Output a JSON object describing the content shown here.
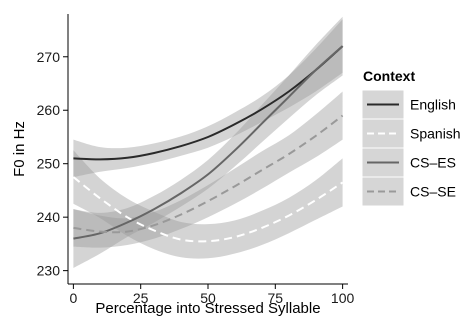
{
  "chart_data": {
    "type": "line",
    "xlabel": "Percentage into Stressed Syllable",
    "ylabel": "F0 in Hz",
    "xlim": [
      -2,
      102
    ],
    "ylim": [
      227.5,
      278
    ],
    "x_ticks": [
      0,
      25,
      50,
      75,
      100
    ],
    "y_ticks": [
      230,
      240,
      250,
      260,
      270
    ],
    "grid": false,
    "legend": {
      "title": "Context",
      "position": "right"
    },
    "x": [
      0,
      10,
      20,
      30,
      40,
      50,
      60,
      70,
      80,
      90,
      100
    ],
    "series": [
      {
        "name": "English",
        "color": "#2a2a2a",
        "dash": "solid",
        "values": [
          251,
          250.8,
          251.1,
          252,
          253.3,
          255,
          257.4,
          260.2,
          263.5,
          267.5,
          272
        ],
        "lower": [
          247.5,
          248.5,
          249.2,
          250.2,
          251.5,
          253,
          255.2,
          257.8,
          260.5,
          263.5,
          267
        ],
        "upper": [
          254.5,
          253.1,
          253,
          253.8,
          255.1,
          257,
          259.6,
          262.6,
          266.5,
          271.5,
          277
        ]
      },
      {
        "name": "Spanish",
        "color": "#ffffff",
        "dash": "dashed",
        "values": [
          247.5,
          243.5,
          240,
          237.5,
          235.8,
          235.5,
          236.3,
          238,
          240.3,
          243.2,
          246.5
        ],
        "lower": [
          242.5,
          239.8,
          236.5,
          234,
          232.5,
          232.3,
          233.2,
          234.8,
          237,
          239.5,
          242
        ],
        "upper": [
          252.5,
          247.2,
          243.5,
          241,
          239.1,
          238.7,
          239.4,
          241.2,
          243.6,
          246.9,
          251
        ]
      },
      {
        "name": "CS–ES",
        "color": "#666666",
        "dash": "solid",
        "values": [
          236,
          237,
          239,
          241.5,
          244.5,
          248,
          252.5,
          257.5,
          262.5,
          267.5,
          272
        ],
        "lower": [
          230.5,
          233.2,
          236.3,
          239,
          242,
          245.3,
          249.5,
          254,
          258.5,
          262.8,
          266.5
        ],
        "upper": [
          241.5,
          240.8,
          241.7,
          244,
          247,
          250.7,
          255.5,
          261,
          266.5,
          272.2,
          277.5
        ]
      },
      {
        "name": "CS–SE",
        "color": "#999999",
        "dash": "dashed",
        "values": [
          238,
          237.3,
          237.3,
          238.5,
          240.5,
          243,
          245.8,
          248.8,
          251.8,
          255.2,
          259
        ],
        "lower": [
          234.5,
          234.3,
          234.8,
          236,
          237.8,
          240,
          242.5,
          245.3,
          248.3,
          251.2,
          254.5
        ],
        "upper": [
          241.5,
          240.3,
          239.8,
          241,
          243.2,
          246,
          249.1,
          252.3,
          255.3,
          259.2,
          263.5
        ]
      }
    ]
  }
}
